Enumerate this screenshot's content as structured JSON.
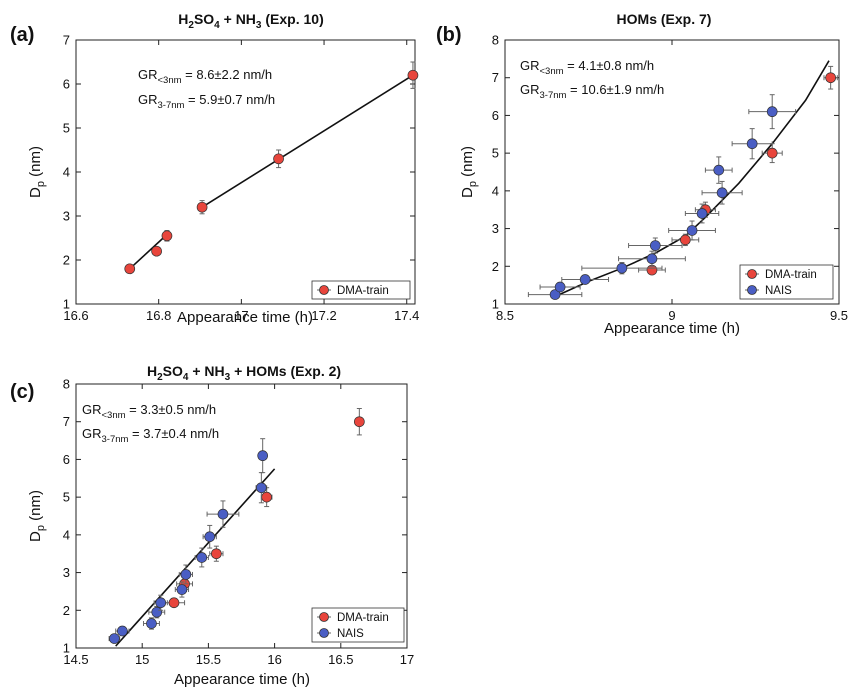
{
  "panels": [
    {
      "tag": "(a)",
      "title_parts": [
        "H",
        "2",
        "SO",
        "4",
        " + NH",
        "3",
        " (Exp. 10)"
      ],
      "xlabel": "Appearance time (h)",
      "ylabel_main": "D",
      "ylabel_sub": "p",
      "ylabel_unit": " (nm)",
      "gr1": {
        "pre": "GR",
        "sub": "<3nm",
        "post": " = 8.6±2.2 nm/h"
      },
      "gr2": {
        "pre": "GR",
        "sub": "3-7nm",
        "post": " = 5.9±0.7 nm/h"
      },
      "legend": [
        {
          "label": "DMA-train",
          "color": "#e8453c"
        }
      ]
    },
    {
      "tag": "(b)",
      "title_parts": [
        "HOMs (Exp. 7)"
      ],
      "xlabel": "Appearance time (h)",
      "ylabel_main": "D",
      "ylabel_sub": "p",
      "ylabel_unit": " (nm)",
      "gr1": {
        "pre": "GR",
        "sub": "<3nm",
        "post": " = 4.1±0.8 nm/h"
      },
      "gr2": {
        "pre": "GR",
        "sub": "3-7nm",
        "post": " = 10.6±1.9 nm/h"
      },
      "legend": [
        {
          "label": "DMA-train",
          "color": "#e8453c"
        },
        {
          "label": "NAIS",
          "color": "#4a5ec4"
        }
      ]
    },
    {
      "tag": "(c)",
      "title_parts": [
        "H",
        "2",
        "SO",
        "4",
        " + NH",
        "3",
        " + HOMs (Exp. 2)"
      ],
      "xlabel": "Appearance time (h)",
      "ylabel_main": "D",
      "ylabel_sub": "p",
      "ylabel_unit": " (nm)",
      "gr1": {
        "pre": "GR",
        "sub": "<3nm",
        "post": " = 3.3±0.5 nm/h"
      },
      "gr2": {
        "pre": "GR",
        "sub": "3-7nm",
        "post": " = 3.7±0.4 nm/h"
      },
      "legend": [
        {
          "label": "DMA-train",
          "color": "#e8453c"
        },
        {
          "label": "NAIS",
          "color": "#4a5ec4"
        }
      ]
    }
  ],
  "chart_data": [
    {
      "type": "scatter",
      "panel": "(a)",
      "xlim": [
        16.6,
        17.42
      ],
      "ylim": [
        1,
        7
      ],
      "xticks": [
        16.6,
        16.8,
        17,
        17.2,
        17.4
      ],
      "xtick_labels": [
        "16.6",
        "16.8",
        "17",
        "17.2",
        "17.4"
      ],
      "yticks": [
        1,
        2,
        3,
        4,
        5,
        6,
        7
      ],
      "ytick_labels": [
        "1",
        "2",
        "3",
        "4",
        "5",
        "6",
        "7"
      ],
      "series": [
        {
          "name": "DMA-train",
          "color": "#e8453c",
          "x": [
            16.73,
            16.795,
            16.82,
            16.905,
            17.09,
            17.415
          ],
          "y": [
            1.8,
            2.2,
            2.55,
            3.2,
            4.3,
            6.2
          ],
          "xerr": [
            0.004,
            0.004,
            0.004,
            0.005,
            0.006,
            0.008
          ],
          "yerr": [
            0.08,
            0.08,
            0.12,
            0.15,
            0.2,
            0.3
          ]
        }
      ],
      "fits": [
        {
          "x": [
            16.73,
            16.82
          ],
          "y": [
            1.8,
            2.58
          ]
        },
        {
          "x": [
            16.905,
            17.415
          ],
          "y": [
            3.2,
            6.2
          ]
        }
      ]
    },
    {
      "type": "scatter",
      "panel": "(b)",
      "xlim": [
        8.5,
        9.5
      ],
      "ylim": [
        1,
        8
      ],
      "xticks": [
        8.5,
        9,
        9.5
      ],
      "xtick_labels": [
        "8.5",
        "9",
        "9.5"
      ],
      "yticks": [
        1,
        2,
        3,
        4,
        5,
        6,
        7,
        8
      ],
      "ytick_labels": [
        "1",
        "2",
        "3",
        "4",
        "5",
        "6",
        "7",
        "8"
      ],
      "series": [
        {
          "name": "DMA-train",
          "color": "#e8453c",
          "x": [
            8.94,
            9.04,
            9.1,
            9.3,
            9.475
          ],
          "y": [
            1.9,
            2.7,
            3.5,
            5.0,
            7.0
          ],
          "xerr": [
            0.04,
            0.04,
            0.03,
            0.03,
            0.02
          ],
          "yerr": [
            0.1,
            0.15,
            0.2,
            0.25,
            0.3
          ]
        },
        {
          "name": "NAIS",
          "color": "#4a5ec4",
          "x": [
            8.65,
            8.665,
            8.74,
            8.85,
            8.94,
            8.95,
            9.06,
            9.09,
            9.15,
            9.14,
            9.24,
            9.3
          ],
          "y": [
            1.25,
            1.45,
            1.65,
            1.95,
            2.2,
            2.55,
            2.95,
            3.4,
            3.95,
            4.55,
            5.25,
            6.1
          ],
          "xerr": [
            0.08,
            0.06,
            0.07,
            0.12,
            0.1,
            0.08,
            0.07,
            0.05,
            0.06,
            0.04,
            0.06,
            0.07
          ],
          "yerr": [
            0.1,
            0.1,
            0.1,
            0.15,
            0.2,
            0.2,
            0.25,
            0.25,
            0.3,
            0.35,
            0.4,
            0.45
          ]
        }
      ],
      "fits": [
        {
          "x": [
            8.65,
            8.75,
            8.85,
            8.95,
            9.04,
            9.1,
            9.2,
            9.3,
            9.4,
            9.47
          ],
          "y": [
            1.2,
            1.6,
            1.95,
            2.35,
            2.8,
            3.3,
            4.2,
            5.25,
            6.4,
            7.45
          ]
        }
      ]
    },
    {
      "type": "scatter",
      "panel": "(c)",
      "xlim": [
        14.5,
        17
      ],
      "ylim": [
        1,
        8
      ],
      "xticks": [
        14.5,
        15,
        15.5,
        16,
        16.5,
        17
      ],
      "xtick_labels": [
        "14.5",
        "15",
        "15.5",
        "16",
        "16.5",
        "17"
      ],
      "yticks": [
        1,
        2,
        3,
        4,
        5,
        6,
        7,
        8
      ],
      "ytick_labels": [
        "1",
        "2",
        "3",
        "4",
        "5",
        "6",
        "7",
        "8"
      ],
      "series": [
        {
          "name": "DMA-train",
          "color": "#e8453c",
          "x": [
            15.24,
            15.32,
            15.56,
            15.94,
            16.64
          ],
          "y": [
            2.2,
            2.7,
            3.5,
            5.0,
            7.0
          ],
          "xerr": [
            0.08,
            0.06,
            0.05,
            0.04,
            0.03
          ],
          "yerr": [
            0.1,
            0.2,
            0.2,
            0.25,
            0.35
          ]
        },
        {
          "name": "NAIS",
          "color": "#4a5ec4",
          "x": [
            14.79,
            14.85,
            15.07,
            15.11,
            15.14,
            15.3,
            15.33,
            15.45,
            15.51,
            15.61,
            15.9,
            15.91
          ],
          "y": [
            1.25,
            1.45,
            1.65,
            1.95,
            2.2,
            2.55,
            2.95,
            3.4,
            3.95,
            4.55,
            5.25,
            6.1
          ],
          "xerr": [
            0.04,
            0.05,
            0.06,
            0.06,
            0.05,
            0.05,
            0.05,
            0.05,
            0.05,
            0.12,
            0.04,
            0.03
          ],
          "yerr": [
            0.1,
            0.1,
            0.15,
            0.15,
            0.2,
            0.2,
            0.25,
            0.25,
            0.3,
            0.35,
            0.4,
            0.45
          ]
        }
      ],
      "fits": [
        {
          "x": [
            14.8,
            16.0
          ],
          "y": [
            1.05,
            5.75
          ]
        }
      ]
    }
  ]
}
